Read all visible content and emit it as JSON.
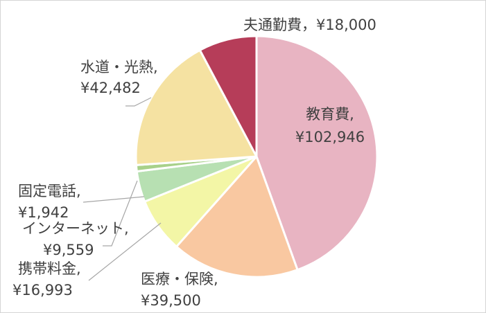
{
  "chart_data": {
    "type": "pie",
    "title": "",
    "start": "top, clockwise",
    "slices": [
      {
        "label": "教育費",
        "amount": "¥102,946",
        "value": 102946,
        "color": "#e8b4c2"
      },
      {
        "label": "医療・保険",
        "amount": "¥39,500",
        "value": 39500,
        "color": "#f9c8a1"
      },
      {
        "label": "携帯料金",
        "amount": "¥16,993",
        "value": 16993,
        "color": "#f3f6a6"
      },
      {
        "label": "インターネット",
        "amount": "¥9,559",
        "value": 9559,
        "color": "#b7e0b2"
      },
      {
        "label": "固定電話",
        "amount": "¥1,942",
        "value": 1942,
        "color": "#a8d18a"
      },
      {
        "label": "水道・光熱",
        "amount": "¥42,482",
        "value": 42482,
        "color": "#f5e2a2"
      },
      {
        "label": "夫通勤費",
        "amount": "¥18,000",
        "value": 18000,
        "color": "#b63d59"
      }
    ]
  },
  "labels": {
    "kyoiku": {
      "name": "教育費,",
      "amount": "¥102,946"
    },
    "iryo": {
      "name": "医療・保険,",
      "amount": "¥39,500"
    },
    "keitai": {
      "name": "携帯料金,",
      "amount": "¥16,993"
    },
    "internet": {
      "name": "インターネット,",
      "amount": "¥9,559"
    },
    "kotei": {
      "name": "固定電話,",
      "amount": "¥1,942"
    },
    "suido": {
      "name": "水道・光熱,",
      "amount": "¥42,482"
    },
    "tsukin": {
      "text": "夫通勤費，¥18,000"
    }
  }
}
